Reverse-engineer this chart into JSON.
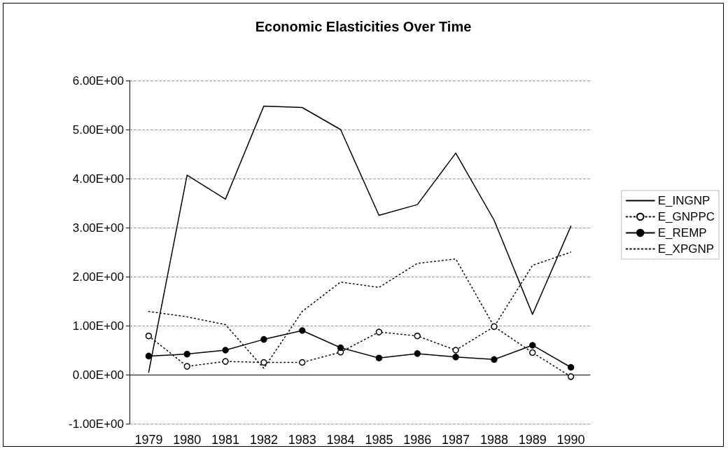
{
  "chart_data": {
    "type": "line",
    "title": "Economic Elasticities Over Time",
    "categories": [
      "1979",
      "1980",
      "1981",
      "1982",
      "1983",
      "1984",
      "1985",
      "1986",
      "1987",
      "1988",
      "1989",
      "1990"
    ],
    "series": [
      {
        "name": "E_INGNP",
        "color": "#000000",
        "line_style": "solid",
        "marker": "none",
        "values": [
          0.05,
          4.07,
          3.58,
          5.48,
          5.45,
          5.0,
          3.25,
          3.47,
          4.52,
          3.15,
          1.23,
          3.03
        ]
      },
      {
        "name": "E_GNPPC",
        "color": "#000000",
        "line_style": "dotted",
        "marker": "circle",
        "values": [
          0.79,
          0.17,
          0.27,
          0.25,
          0.25,
          0.46,
          0.87,
          0.79,
          0.5,
          0.98,
          0.45,
          -0.04
        ]
      },
      {
        "name": "E_REMP",
        "color": "#000000",
        "line_style": "solid",
        "marker": "circle",
        "values": [
          0.38,
          0.42,
          0.5,
          0.72,
          0.9,
          0.55,
          0.34,
          0.43,
          0.36,
          0.31,
          0.6,
          0.15
        ]
      },
      {
        "name": "E_XPGNP",
        "color": "#000000",
        "line_style": "dotted",
        "marker": "none",
        "values": [
          1.29,
          1.18,
          1.02,
          0.13,
          1.29,
          1.89,
          1.78,
          2.27,
          2.36,
          0.98,
          2.23,
          2.5
        ]
      }
    ],
    "ylim": [
      -1,
      6
    ],
    "yticks": [
      {
        "value": -1,
        "label": "-1.00E+00"
      },
      {
        "value": 0,
        "label": "0.00E+00"
      },
      {
        "value": 1,
        "label": "1.00E+00"
      },
      {
        "value": 2,
        "label": "2.00E+00"
      },
      {
        "value": 3,
        "label": "3.00E+00"
      },
      {
        "value": 4,
        "label": "4.00E+00"
      },
      {
        "value": 5,
        "label": "5.00E+00"
      },
      {
        "value": 6,
        "label": "6.00E+00"
      }
    ],
    "grid": "y",
    "legend": "right"
  }
}
